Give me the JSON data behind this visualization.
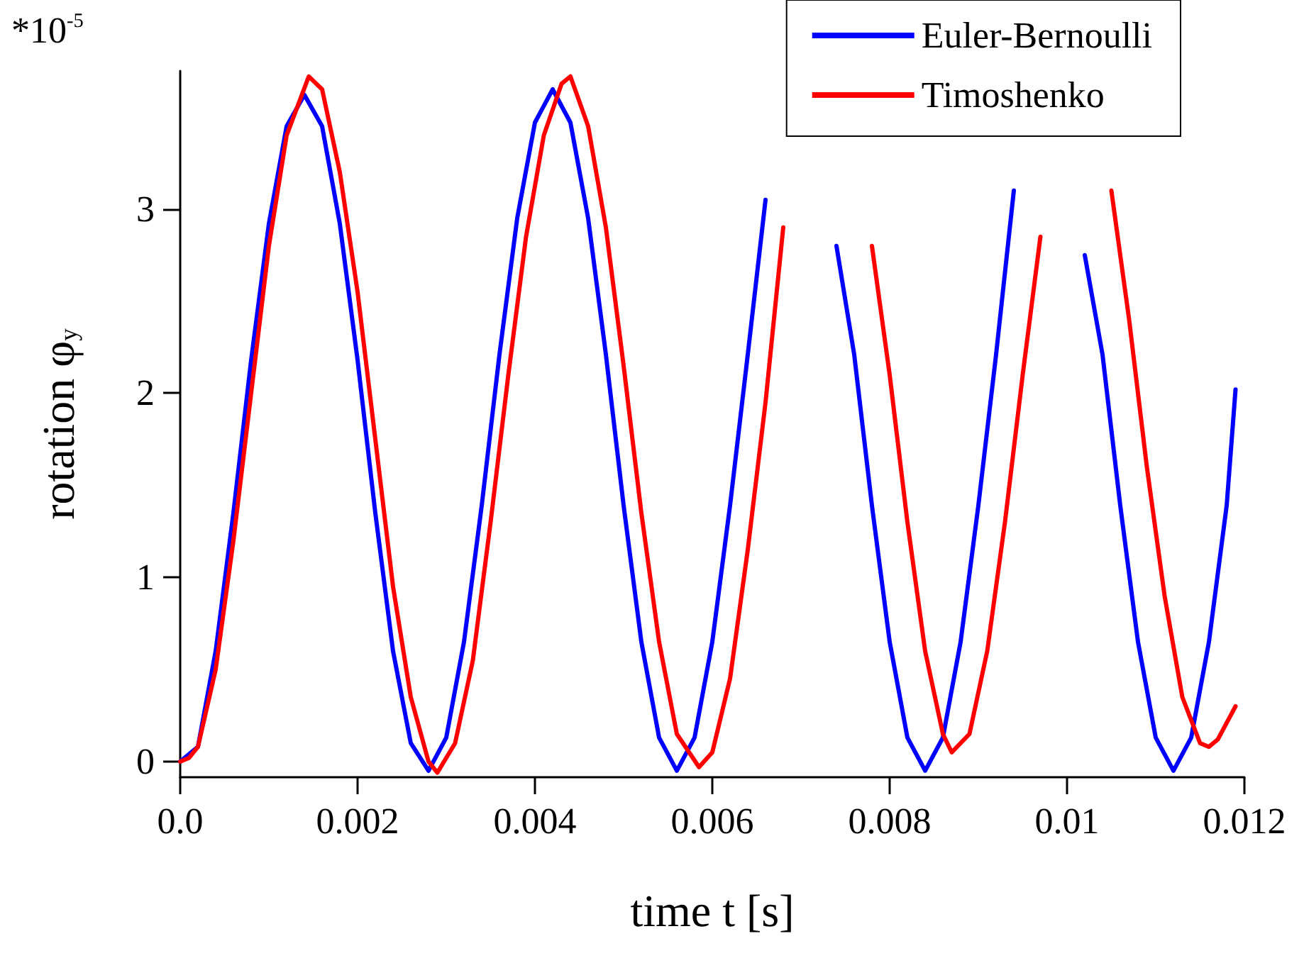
{
  "chart_data": {
    "type": "line",
    "xlabel": "time t [s]",
    "ylabel": "rotation φ$_{y}$",
    "annotations": [
      "*10$^{-5}$"
    ],
    "xlim": [
      0,
      0.012
    ],
    "xticks": [
      {
        "value": 0,
        "label": "0.0"
      },
      0.002,
      0.004,
      0.006,
      0.008,
      0.01,
      0.012
    ],
    "ylim": [
      -0.085,
      3.75
    ],
    "yticks": [
      0,
      1,
      2,
      3
    ],
    "grid": false,
    "legend": "top right",
    "marker": "none",
    "line_style": "solid",
    "series": [
      {
        "name": "Euler-Bernoulli",
        "color": "#0000ff",
        "x": [
          0,
          0.0002,
          0.0004,
          0.0006,
          0.0008,
          0.001,
          0.0012,
          0.0014,
          0.0016,
          0.0018,
          0.002,
          0.0022,
          0.0024,
          0.0026,
          0.0028,
          0.003,
          0.0032,
          0.0034,
          0.0036,
          0.0038,
          0.004,
          0.0042,
          0.0044,
          0.0046,
          0.0048,
          0.005,
          0.0052,
          0.0054,
          0.0056,
          0.0058,
          0.006,
          0.0062,
          0.0064,
          0.0066,
          0.0068,
          0.007,
          0.0072,
          0.0074,
          0.0076,
          0.0078,
          0.008,
          0.0082,
          0.0084,
          0.0086,
          0.0088,
          0.009,
          0.0092,
          0.0094,
          0.0096,
          0.0098,
          0.01,
          0.0102,
          0.0104,
          0.0106,
          0.0108,
          0.011,
          0.0112,
          0.0114,
          0.0116,
          0.0118,
          0.0119
        ],
        "values": [
          0,
          0.08,
          0.6,
          1.35,
          2.18,
          2.92,
          3.45,
          3.62,
          3.45,
          2.92,
          2.18,
          1.35,
          0.6,
          0.1,
          -0.05,
          0.13,
          0.65,
          1.39,
          2.21,
          2.95,
          3.47,
          3.65,
          3.47,
          2.95,
          2.21,
          1.39,
          0.65,
          0.13,
          -0.05,
          0.13,
          0.65,
          1.39,
          2.21,
          3.05,
          null,
          null,
          null,
          2.8,
          2.21,
          1.39,
          0.65,
          0.13,
          -0.05,
          0.13,
          0.65,
          1.39,
          2.21,
          3.1,
          null,
          null,
          null,
          2.75,
          2.21,
          1.39,
          0.65,
          0.13,
          -0.05,
          0.13,
          0.65,
          1.39,
          2.02
        ]
      },
      {
        "name": "Timoshenko",
        "color": "#ff0000",
        "x": [
          0,
          0.0001,
          0.0002,
          0.0004,
          0.0006,
          0.0008,
          0.001,
          0.0012,
          0.00145,
          0.0016,
          0.0018,
          0.002,
          0.0022,
          0.0024,
          0.0026,
          0.0028,
          0.0029,
          0.0031,
          0.0033,
          0.0035,
          0.0037,
          0.0039,
          0.0041,
          0.0043,
          0.0044,
          0.0046,
          0.0048,
          0.005,
          0.0052,
          0.0054,
          0.0056,
          0.00585,
          0.006,
          0.0062,
          0.0064,
          0.0066,
          0.0068,
          0.007,
          0.0072,
          0.0074,
          0.0076,
          0.0078,
          0.008,
          0.0082,
          0.0084,
          0.0086,
          0.0087,
          0.0089,
          0.0091,
          0.0093,
          0.0095,
          0.0097,
          0.0099,
          0.0101,
          0.0103,
          0.0105,
          0.0107,
          0.0109,
          0.0111,
          0.0113,
          0.0115,
          0.0116,
          0.0117,
          0.0119
        ],
        "values": [
          0,
          0.02,
          0.08,
          0.5,
          1.2,
          2,
          2.8,
          3.4,
          3.72,
          3.65,
          3.2,
          2.55,
          1.75,
          0.95,
          0.35,
          0,
          -0.06,
          0.1,
          0.55,
          1.3,
          2.1,
          2.85,
          3.4,
          3.68,
          3.72,
          3.45,
          2.9,
          2.15,
          1.35,
          0.65,
          0.15,
          -0.03,
          0.05,
          0.45,
          1.15,
          1.95,
          2.9,
          null,
          null,
          null,
          null,
          2.8,
          2.1,
          1.3,
          0.6,
          0.15,
          0.05,
          0.15,
          0.6,
          1.3,
          2.1,
          2.85,
          null,
          null,
          null,
          3.1,
          2.4,
          1.6,
          0.9,
          0.35,
          0.1,
          0.08,
          0.12,
          0.3
        ]
      }
    ]
  }
}
